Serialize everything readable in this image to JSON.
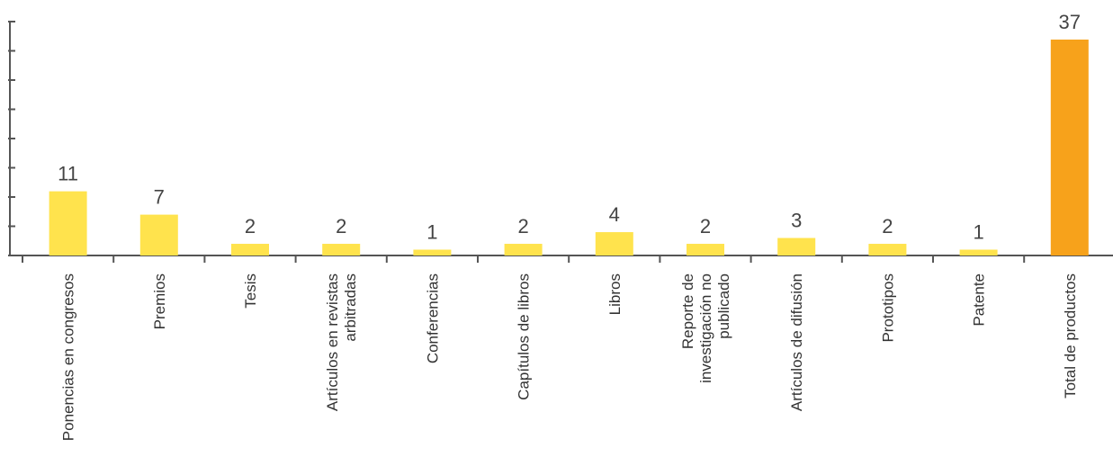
{
  "chart_data": {
    "type": "bar",
    "categories": [
      [
        "Ponencias en congresos"
      ],
      [
        "Premios"
      ],
      [
        "Tesis"
      ],
      [
        "Artículos en revistas",
        "arbitradas"
      ],
      [
        "Conferencias"
      ],
      [
        "Capítulos de libros"
      ],
      [
        "Libros"
      ],
      [
        "Reporte de",
        "investigación no",
        "publicado"
      ],
      [
        "Artículos de difusión"
      ],
      [
        "Prototipos"
      ],
      [
        "Patente"
      ],
      [
        "Total de productos"
      ]
    ],
    "values": [
      11,
      7,
      2,
      2,
      1,
      2,
      4,
      2,
      3,
      2,
      1,
      37
    ],
    "value_labels": [
      "11",
      "7",
      "2",
      "2",
      "1",
      "2",
      "4",
      "2",
      "3",
      "2",
      "1",
      "37"
    ],
    "colors": {
      "bar": "#ffe34d",
      "total_bar": "#f7a21b",
      "axis": "#555555"
    },
    "ylim": [
      0,
      37
    ],
    "title": "",
    "xlabel": "",
    "ylabel": ""
  }
}
